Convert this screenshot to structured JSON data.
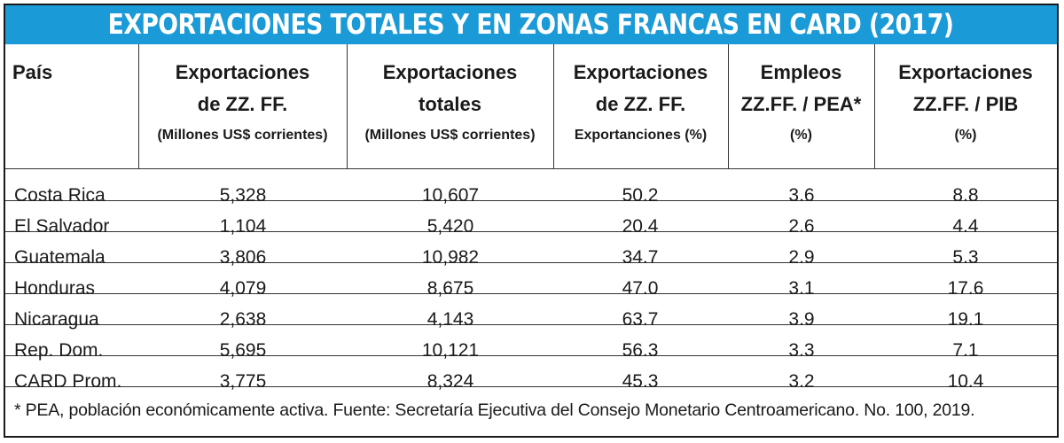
{
  "title": "EXPORTACIONES TOTALES Y EN ZONAS FRANCAS EN CARD (2017)",
  "colors": {
    "title_bar": "#1a9ad6",
    "title_text": "#ffffff",
    "text": "#1a1a1a"
  },
  "header": {
    "pais": "País",
    "col1": {
      "line1": "Exportaciones",
      "line2": "de ZZ. FF.",
      "line3": "(Millones US$ corrientes)"
    },
    "col2": {
      "line1": "Exportaciones",
      "line2": "totales",
      "line3": "(Millones US$ corrientes)"
    },
    "col3": {
      "line1": "Exportaciones",
      "line2": "de ZZ. FF.",
      "line3": "Exportanciones (%)"
    },
    "col4": {
      "line1": "Empleos",
      "line2": "ZZ.FF. / PEA*",
      "line3": "(%)"
    },
    "col5": {
      "line1": "Exportaciones",
      "line2": "ZZ.FF. / PIB",
      "line3": "(%)"
    }
  },
  "rows": [
    {
      "pais": "Costa Rica",
      "exp_zf": "5,328",
      "exp_tot": "10,607",
      "pct_exp": "50.2",
      "empleo": "3.6",
      "pib": "8.8"
    },
    {
      "pais": "El Salvador",
      "exp_zf": "1,104",
      "exp_tot": "5,420",
      "pct_exp": "20.4",
      "empleo": "2.6",
      "pib": "4.4"
    },
    {
      "pais": "Guatemala",
      "exp_zf": "3,806",
      "exp_tot": "10,982",
      "pct_exp": "34.7",
      "empleo": "2.9",
      "pib": "5.3"
    },
    {
      "pais": "Honduras",
      "exp_zf": "4,079",
      "exp_tot": "8,675",
      "pct_exp": "47.0",
      "empleo": "3.1",
      "pib": "17.6"
    },
    {
      "pais": "Nicaragua",
      "exp_zf": "2,638",
      "exp_tot": "4,143",
      "pct_exp": "63.7",
      "empleo": "3.9",
      "pib": "19.1"
    },
    {
      "pais": "Rep. Dom.",
      "exp_zf": "5,695",
      "exp_tot": "10,121",
      "pct_exp": "56.3",
      "empleo": "3.3",
      "pib": "7.1"
    },
    {
      "pais": "CARD Prom.",
      "exp_zf": "3,775",
      "exp_tot": "8,324",
      "pct_exp": "45.3",
      "empleo": "3.2",
      "pib": "10.4"
    }
  ],
  "footnote": "* PEA, población económicamente activa. Fuente: Secretaría Ejecutiva del Consejo Monetario Centroamericano. No. 100, 2019."
}
